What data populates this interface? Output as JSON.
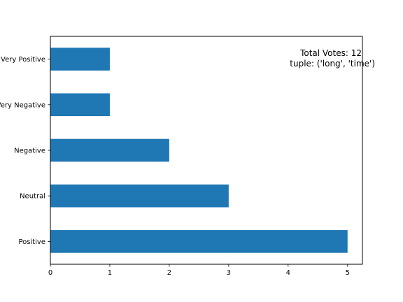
{
  "chart_data": {
    "type": "bar",
    "orientation": "horizontal",
    "categories": [
      "Positive",
      "Neutral",
      "Negative",
      "Very Negative",
      "Very Positive"
    ],
    "values": [
      5,
      3,
      2,
      1,
      1
    ],
    "xlim": [
      0,
      5.25
    ],
    "xticks": [
      0,
      1,
      2,
      3,
      4,
      5
    ],
    "bar_color": "#1f77b4",
    "grid": false,
    "annotations": [
      "Total Votes: 12",
      "tuple: ('long', 'time')"
    ]
  }
}
